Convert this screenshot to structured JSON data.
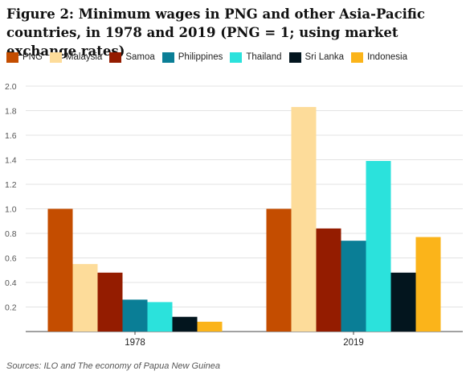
{
  "chart_data": {
    "type": "bar",
    "title": "Figure 2: Minimum wages in PNG and other Asia-Pacific countries, in 1978 and 2019 (PNG = 1; using market exchange rates)",
    "categories": [
      "1978",
      "2019"
    ],
    "series": [
      {
        "name": "PNG",
        "color": "#c44d00",
        "values": [
          1.0,
          1.0
        ]
      },
      {
        "name": "Malaysia",
        "color": "#fddc9a",
        "values": [
          0.55,
          1.83
        ]
      },
      {
        "name": "Samoa",
        "color": "#941c00",
        "values": [
          0.48,
          0.84
        ]
      },
      {
        "name": "Philippines",
        "color": "#0a7e96",
        "values": [
          0.26,
          0.74
        ]
      },
      {
        "name": "Thailand",
        "color": "#2be2dc",
        "values": [
          0.24,
          1.39
        ]
      },
      {
        "name": "Sri Lanka",
        "color": "#03151e",
        "values": [
          0.12,
          0.48
        ]
      },
      {
        "name": "Indonesia",
        "color": "#fbb41a",
        "values": [
          0.08,
          0.77
        ]
      }
    ],
    "ylim": [
      0,
      2.0
    ],
    "yticks": [
      "0.2",
      "0.4",
      "0.6",
      "0.8",
      "1.0",
      "1.2",
      "1.4",
      "1.6",
      "1.8",
      "2.0"
    ],
    "ytick_values": [
      0.2,
      0.4,
      0.6,
      0.8,
      1.0,
      1.2,
      1.4,
      1.6,
      1.8,
      2.0
    ],
    "xlabel": "",
    "ylabel": "",
    "grid": true,
    "legend_position": "top-left",
    "source": "Sources: ILO and The economy of Papua New Guinea"
  }
}
